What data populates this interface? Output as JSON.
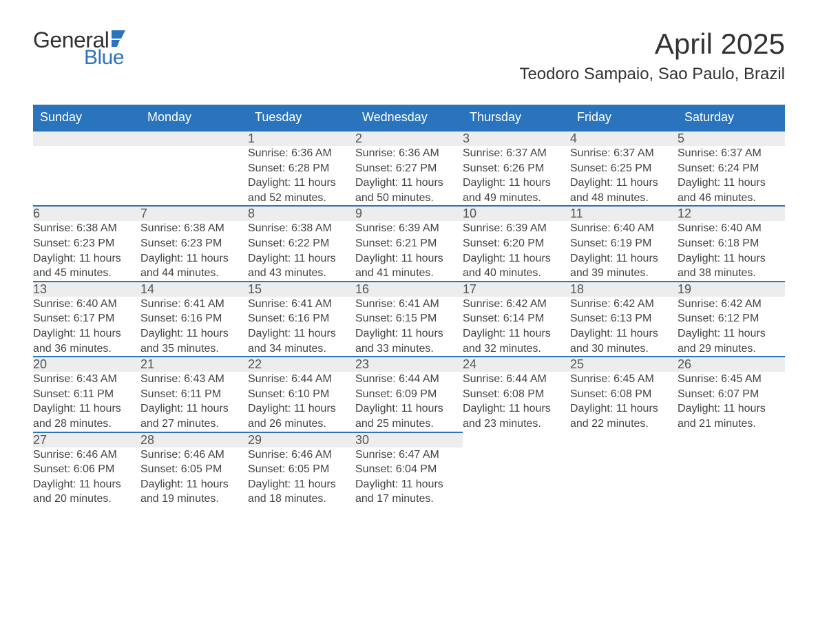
{
  "logo": {
    "textTop": "General",
    "textBottom": "Blue"
  },
  "title": "April 2025",
  "location": "Teodoro Sampaio, Sao Paulo, Brazil",
  "colors": {
    "accent": "#2a74be",
    "headerRowBg": "#ededed",
    "text": "#333333",
    "background": "#ffffff"
  },
  "fonts": {
    "title_fontsize": 42,
    "location_fontsize": 24,
    "dayheader_fontsize": 18,
    "daynum_fontsize": 18,
    "body_fontsize": 16
  },
  "dayHeaders": [
    "Sunday",
    "Monday",
    "Tuesday",
    "Wednesday",
    "Thursday",
    "Friday",
    "Saturday"
  ],
  "weeks": [
    [
      null,
      null,
      {
        "n": "1",
        "sunrise": "Sunrise: 6:36 AM",
        "sunset": "Sunset: 6:28 PM",
        "daylight": "Daylight: 11 hours and 52 minutes."
      },
      {
        "n": "2",
        "sunrise": "Sunrise: 6:36 AM",
        "sunset": "Sunset: 6:27 PM",
        "daylight": "Daylight: 11 hours and 50 minutes."
      },
      {
        "n": "3",
        "sunrise": "Sunrise: 6:37 AM",
        "sunset": "Sunset: 6:26 PM",
        "daylight": "Daylight: 11 hours and 49 minutes."
      },
      {
        "n": "4",
        "sunrise": "Sunrise: 6:37 AM",
        "sunset": "Sunset: 6:25 PM",
        "daylight": "Daylight: 11 hours and 48 minutes."
      },
      {
        "n": "5",
        "sunrise": "Sunrise: 6:37 AM",
        "sunset": "Sunset: 6:24 PM",
        "daylight": "Daylight: 11 hours and 46 minutes."
      }
    ],
    [
      {
        "n": "6",
        "sunrise": "Sunrise: 6:38 AM",
        "sunset": "Sunset: 6:23 PM",
        "daylight": "Daylight: 11 hours and 45 minutes."
      },
      {
        "n": "7",
        "sunrise": "Sunrise: 6:38 AM",
        "sunset": "Sunset: 6:23 PM",
        "daylight": "Daylight: 11 hours and 44 minutes."
      },
      {
        "n": "8",
        "sunrise": "Sunrise: 6:38 AM",
        "sunset": "Sunset: 6:22 PM",
        "daylight": "Daylight: 11 hours and 43 minutes."
      },
      {
        "n": "9",
        "sunrise": "Sunrise: 6:39 AM",
        "sunset": "Sunset: 6:21 PM",
        "daylight": "Daylight: 11 hours and 41 minutes."
      },
      {
        "n": "10",
        "sunrise": "Sunrise: 6:39 AM",
        "sunset": "Sunset: 6:20 PM",
        "daylight": "Daylight: 11 hours and 40 minutes."
      },
      {
        "n": "11",
        "sunrise": "Sunrise: 6:40 AM",
        "sunset": "Sunset: 6:19 PM",
        "daylight": "Daylight: 11 hours and 39 minutes."
      },
      {
        "n": "12",
        "sunrise": "Sunrise: 6:40 AM",
        "sunset": "Sunset: 6:18 PM",
        "daylight": "Daylight: 11 hours and 38 minutes."
      }
    ],
    [
      {
        "n": "13",
        "sunrise": "Sunrise: 6:40 AM",
        "sunset": "Sunset: 6:17 PM",
        "daylight": "Daylight: 11 hours and 36 minutes."
      },
      {
        "n": "14",
        "sunrise": "Sunrise: 6:41 AM",
        "sunset": "Sunset: 6:16 PM",
        "daylight": "Daylight: 11 hours and 35 minutes."
      },
      {
        "n": "15",
        "sunrise": "Sunrise: 6:41 AM",
        "sunset": "Sunset: 6:16 PM",
        "daylight": "Daylight: 11 hours and 34 minutes."
      },
      {
        "n": "16",
        "sunrise": "Sunrise: 6:41 AM",
        "sunset": "Sunset: 6:15 PM",
        "daylight": "Daylight: 11 hours and 33 minutes."
      },
      {
        "n": "17",
        "sunrise": "Sunrise: 6:42 AM",
        "sunset": "Sunset: 6:14 PM",
        "daylight": "Daylight: 11 hours and 32 minutes."
      },
      {
        "n": "18",
        "sunrise": "Sunrise: 6:42 AM",
        "sunset": "Sunset: 6:13 PM",
        "daylight": "Daylight: 11 hours and 30 minutes."
      },
      {
        "n": "19",
        "sunrise": "Sunrise: 6:42 AM",
        "sunset": "Sunset: 6:12 PM",
        "daylight": "Daylight: 11 hours and 29 minutes."
      }
    ],
    [
      {
        "n": "20",
        "sunrise": "Sunrise: 6:43 AM",
        "sunset": "Sunset: 6:11 PM",
        "daylight": "Daylight: 11 hours and 28 minutes."
      },
      {
        "n": "21",
        "sunrise": "Sunrise: 6:43 AM",
        "sunset": "Sunset: 6:11 PM",
        "daylight": "Daylight: 11 hours and 27 minutes."
      },
      {
        "n": "22",
        "sunrise": "Sunrise: 6:44 AM",
        "sunset": "Sunset: 6:10 PM",
        "daylight": "Daylight: 11 hours and 26 minutes."
      },
      {
        "n": "23",
        "sunrise": "Sunrise: 6:44 AM",
        "sunset": "Sunset: 6:09 PM",
        "daylight": "Daylight: 11 hours and 25 minutes."
      },
      {
        "n": "24",
        "sunrise": "Sunrise: 6:44 AM",
        "sunset": "Sunset: 6:08 PM",
        "daylight": "Daylight: 11 hours and 23 minutes."
      },
      {
        "n": "25",
        "sunrise": "Sunrise: 6:45 AM",
        "sunset": "Sunset: 6:08 PM",
        "daylight": "Daylight: 11 hours and 22 minutes."
      },
      {
        "n": "26",
        "sunrise": "Sunrise: 6:45 AM",
        "sunset": "Sunset: 6:07 PM",
        "daylight": "Daylight: 11 hours and 21 minutes."
      }
    ],
    [
      {
        "n": "27",
        "sunrise": "Sunrise: 6:46 AM",
        "sunset": "Sunset: 6:06 PM",
        "daylight": "Daylight: 11 hours and 20 minutes."
      },
      {
        "n": "28",
        "sunrise": "Sunrise: 6:46 AM",
        "sunset": "Sunset: 6:05 PM",
        "daylight": "Daylight: 11 hours and 19 minutes."
      },
      {
        "n": "29",
        "sunrise": "Sunrise: 6:46 AM",
        "sunset": "Sunset: 6:05 PM",
        "daylight": "Daylight: 11 hours and 18 minutes."
      },
      {
        "n": "30",
        "sunrise": "Sunrise: 6:47 AM",
        "sunset": "Sunset: 6:04 PM",
        "daylight": "Daylight: 11 hours and 17 minutes."
      },
      null,
      null,
      null
    ]
  ]
}
